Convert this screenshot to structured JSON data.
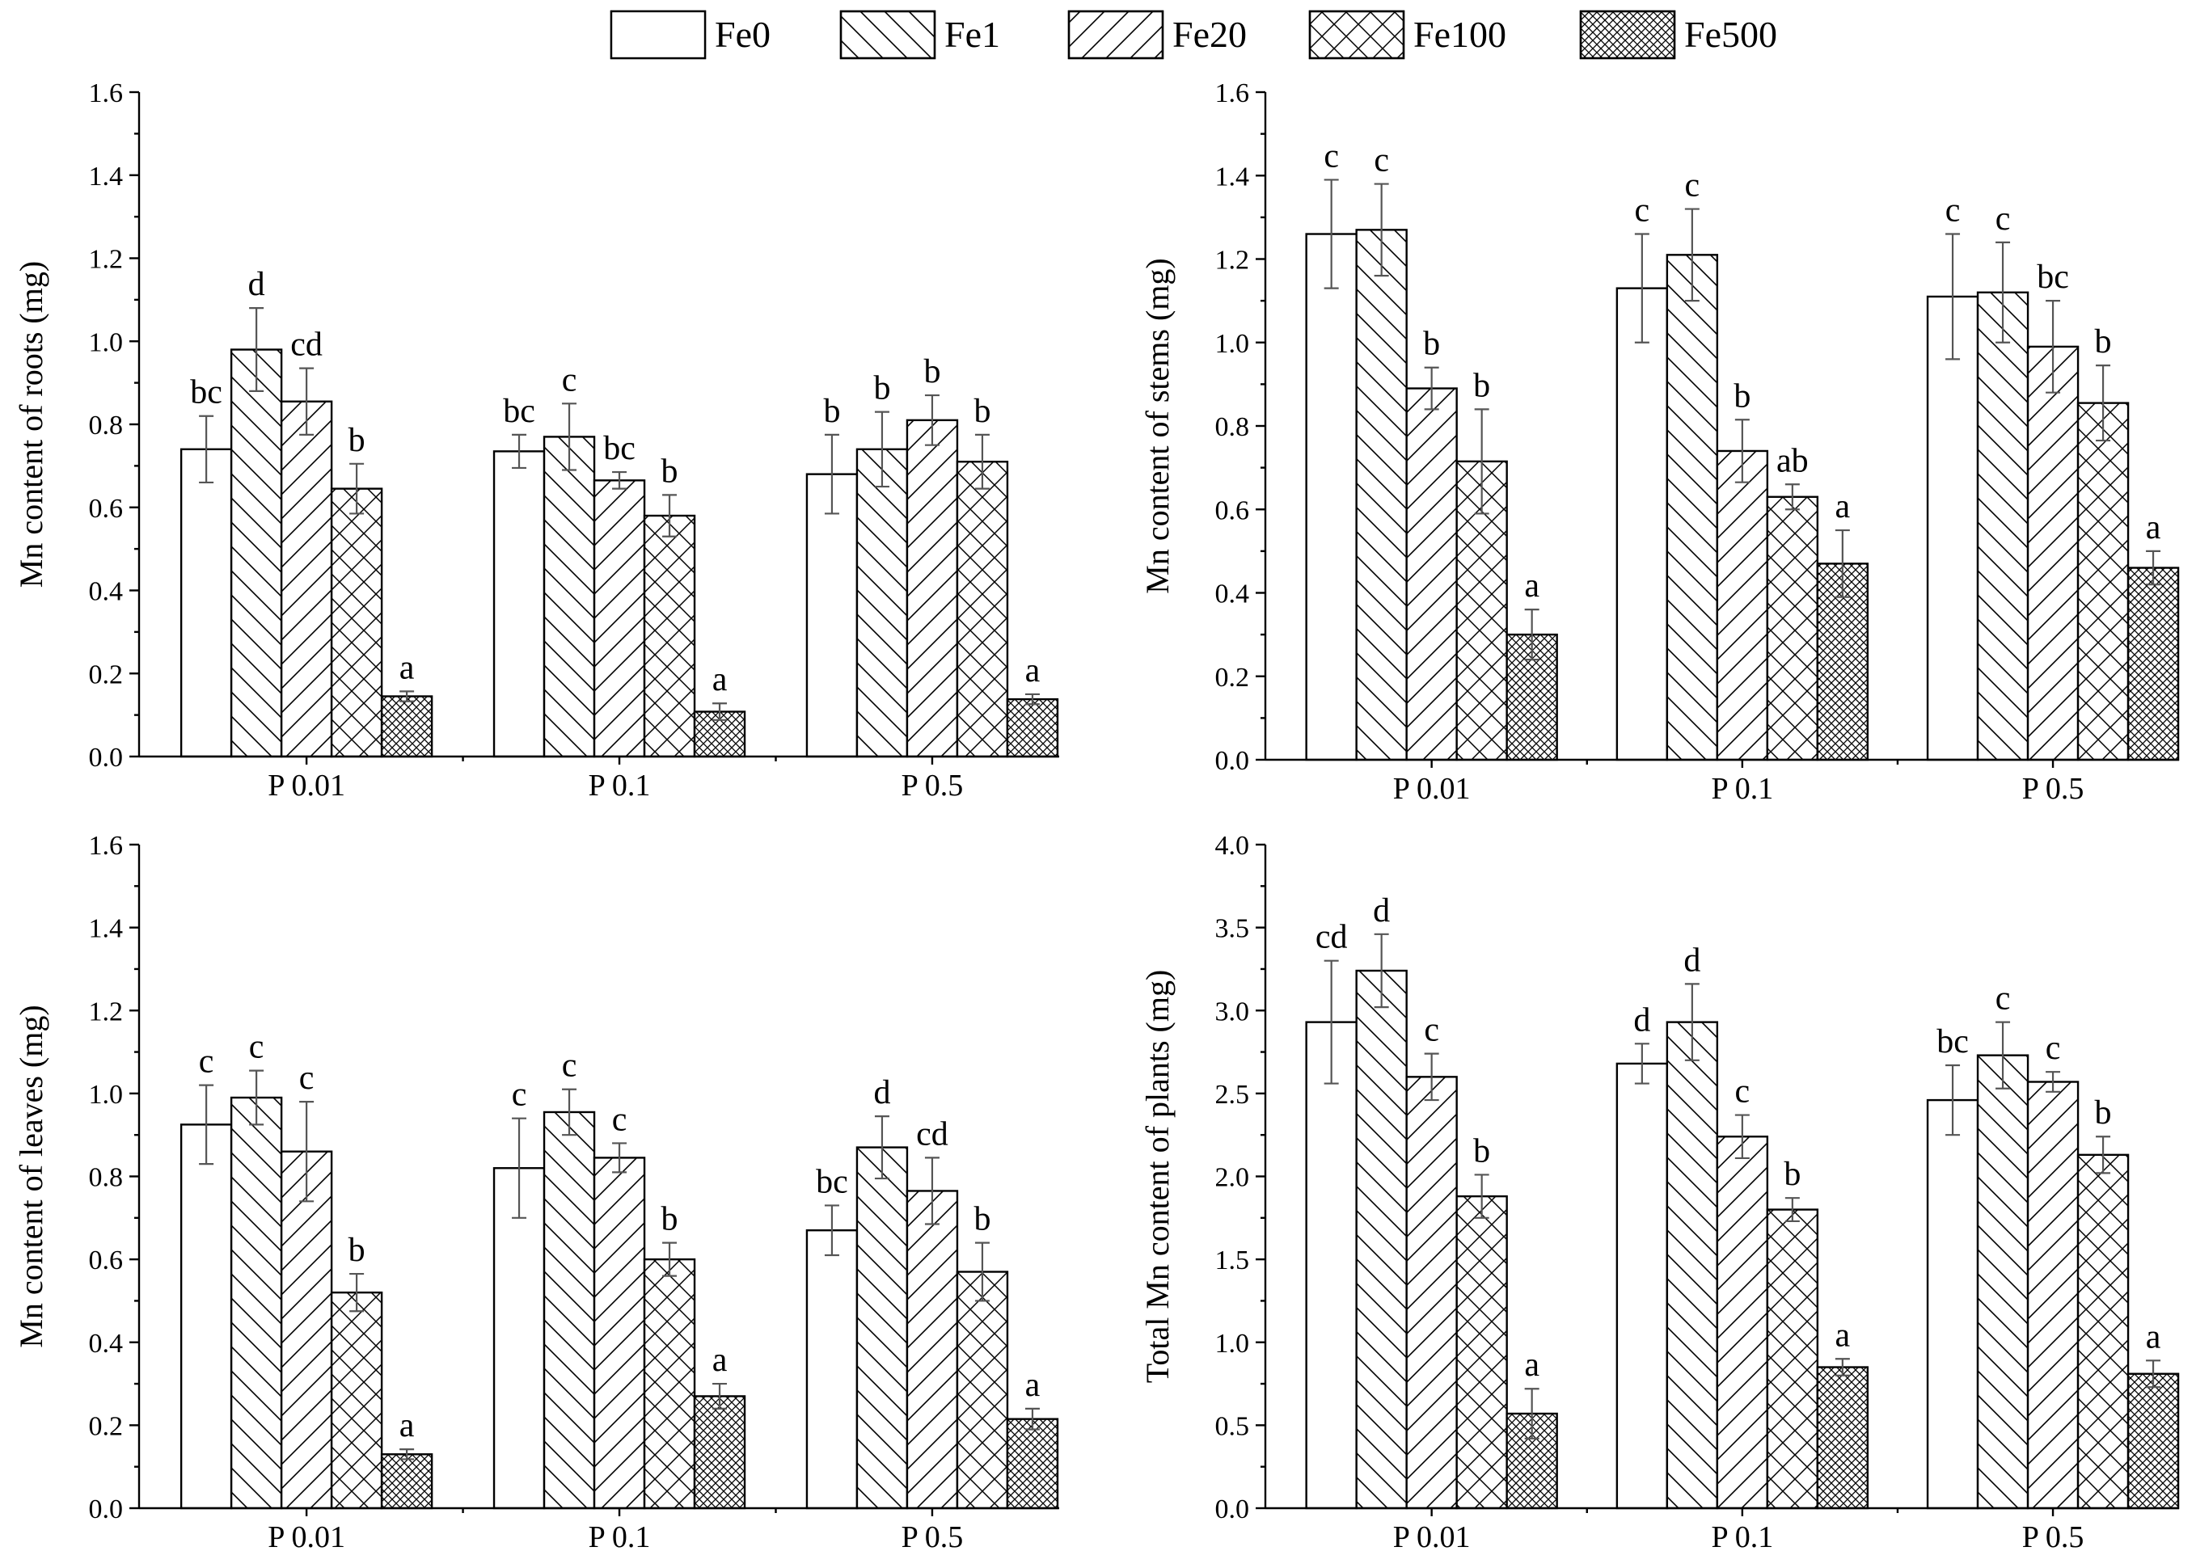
{
  "legend": {
    "items": [
      {
        "name": "Fe0",
        "pattern": "pat-none"
      },
      {
        "name": "Fe1",
        "pattern": "pat-back"
      },
      {
        "name": "Fe20",
        "pattern": "pat-fwd"
      },
      {
        "name": "Fe100",
        "pattern": "pat-cross"
      },
      {
        "name": "Fe500",
        "pattern": "pat-dense"
      }
    ]
  },
  "colors": {
    "bar_fill": "#ffffff",
    "stroke": "#000000",
    "error_bar": "#555555"
  },
  "chart_data": [
    {
      "type": "bar",
      "id": "roots",
      "ylabel": "Mn content of roots (mg)",
      "ylim": [
        0,
        1.6
      ],
      "ytick_step": 0.2,
      "ytick_labels": [
        "0.0",
        "0.2",
        "0.4",
        "0.6",
        "0.8",
        "1.0",
        "1.2",
        "1.4",
        "1.6"
      ],
      "categories": [
        "P 0.01",
        "P 0.1",
        "P 0.5"
      ],
      "series": [
        {
          "name": "Fe0",
          "values": [
            0.74,
            0.735,
            0.68
          ],
          "errors": [
            0.08,
            0.04,
            0.095
          ],
          "letters": [
            "bc",
            "bc",
            "b"
          ]
        },
        {
          "name": "Fe1",
          "values": [
            0.98,
            0.77,
            0.74
          ],
          "errors": [
            0.1,
            0.08,
            0.09
          ],
          "letters": [
            "d",
            "c",
            "b"
          ]
        },
        {
          "name": "Fe20",
          "values": [
            0.855,
            0.665,
            0.81
          ],
          "errors": [
            0.08,
            0.02,
            0.06
          ],
          "letters": [
            "cd",
            "bc",
            "b"
          ]
        },
        {
          "name": "Fe100",
          "values": [
            0.645,
            0.58,
            0.71
          ],
          "errors": [
            0.06,
            0.05,
            0.065
          ],
          "letters": [
            "b",
            "b",
            "b"
          ]
        },
        {
          "name": "Fe500",
          "values": [
            0.145,
            0.108,
            0.138
          ],
          "errors": [
            0.012,
            0.02,
            0.012
          ],
          "letters": [
            "a",
            "a",
            "a"
          ]
        }
      ]
    },
    {
      "type": "bar",
      "id": "stems",
      "ylabel": "Mn content of stems (mg)",
      "ylim": [
        0,
        1.6
      ],
      "ytick_step": 0.2,
      "ytick_labels": [
        "0.0",
        "0.2",
        "0.4",
        "0.6",
        "0.8",
        "1.0",
        "1.2",
        "1.4",
        "1.6"
      ],
      "categories": [
        "P 0.01",
        "P 0.1",
        "P 0.5"
      ],
      "series": [
        {
          "name": "Fe0",
          "values": [
            1.26,
            1.13,
            1.11
          ],
          "errors": [
            0.13,
            0.13,
            0.15
          ],
          "letters": [
            "c",
            "c",
            "c"
          ]
        },
        {
          "name": "Fe1",
          "values": [
            1.27,
            1.21,
            1.12
          ],
          "errors": [
            0.11,
            0.11,
            0.12
          ],
          "letters": [
            "c",
            "c",
            "c"
          ]
        },
        {
          "name": "Fe20",
          "values": [
            0.89,
            0.74,
            0.99
          ],
          "errors": [
            0.05,
            0.075,
            0.11
          ],
          "letters": [
            "b",
            "b",
            "bc"
          ]
        },
        {
          "name": "Fe100",
          "values": [
            0.715,
            0.63,
            0.855
          ],
          "errors": [
            0.125,
            0.03,
            0.09
          ],
          "letters": [
            "b",
            "ab",
            "b"
          ]
        },
        {
          "name": "Fe500",
          "values": [
            0.3,
            0.47,
            0.46
          ],
          "errors": [
            0.06,
            0.08,
            0.04
          ],
          "letters": [
            "a",
            "a",
            "a"
          ]
        }
      ]
    },
    {
      "type": "bar",
      "id": "leaves",
      "ylabel": "Mn content of leaves (mg)",
      "ylim": [
        0,
        1.6
      ],
      "ytick_step": 0.2,
      "ytick_labels": [
        "0.0",
        "0.2",
        "0.4",
        "0.6",
        "0.8",
        "1.0",
        "1.2",
        "1.4",
        "1.6"
      ],
      "categories": [
        "P 0.01",
        "P 0.1",
        "P 0.5"
      ],
      "series": [
        {
          "name": "Fe0",
          "values": [
            0.925,
            0.82,
            0.67
          ],
          "errors": [
            0.095,
            0.12,
            0.06
          ],
          "letters": [
            "c",
            "c",
            "bc"
          ]
        },
        {
          "name": "Fe1",
          "values": [
            0.99,
            0.955,
            0.87
          ],
          "errors": [
            0.065,
            0.055,
            0.075
          ],
          "letters": [
            "c",
            "c",
            "d"
          ]
        },
        {
          "name": "Fe20",
          "values": [
            0.86,
            0.845,
            0.765
          ],
          "errors": [
            0.12,
            0.035,
            0.08
          ],
          "letters": [
            "c",
            "c",
            "cd"
          ]
        },
        {
          "name": "Fe100",
          "values": [
            0.52,
            0.6,
            0.57
          ],
          "errors": [
            0.045,
            0.04,
            0.07
          ],
          "letters": [
            "b",
            "b",
            "b"
          ]
        },
        {
          "name": "Fe500",
          "values": [
            0.13,
            0.27,
            0.215
          ],
          "errors": [
            0.012,
            0.03,
            0.025
          ],
          "letters": [
            "a",
            "a",
            "a"
          ]
        }
      ]
    },
    {
      "type": "bar",
      "id": "total",
      "ylabel": "Total Mn content of plants (mg)",
      "ylim": [
        0,
        4.0
      ],
      "ytick_step": 0.5,
      "ytick_labels": [
        "0.0",
        "0.5",
        "1.0",
        "1.5",
        "2.0",
        "2.5",
        "3.0",
        "3.5",
        "4.0"
      ],
      "categories": [
        "P 0.01",
        "P 0.1",
        "P 0.5"
      ],
      "series": [
        {
          "name": "Fe0",
          "values": [
            2.93,
            2.68,
            2.46
          ],
          "errors": [
            0.37,
            0.12,
            0.21
          ],
          "letters": [
            "cd",
            "d",
            "bc"
          ]
        },
        {
          "name": "Fe1",
          "values": [
            3.24,
            2.93,
            2.73
          ],
          "errors": [
            0.22,
            0.23,
            0.2
          ],
          "letters": [
            "d",
            "d",
            "c"
          ]
        },
        {
          "name": "Fe20",
          "values": [
            2.6,
            2.24,
            2.57
          ],
          "errors": [
            0.14,
            0.13,
            0.06
          ],
          "letters": [
            "c",
            "c",
            "c"
          ]
        },
        {
          "name": "Fe100",
          "values": [
            1.88,
            1.8,
            2.13
          ],
          "errors": [
            0.13,
            0.07,
            0.11
          ],
          "letters": [
            "b",
            "b",
            "b"
          ]
        },
        {
          "name": "Fe500",
          "values": [
            0.57,
            0.85,
            0.81
          ],
          "errors": [
            0.15,
            0.05,
            0.08
          ],
          "letters": [
            "a",
            "a",
            "a"
          ]
        }
      ]
    }
  ]
}
